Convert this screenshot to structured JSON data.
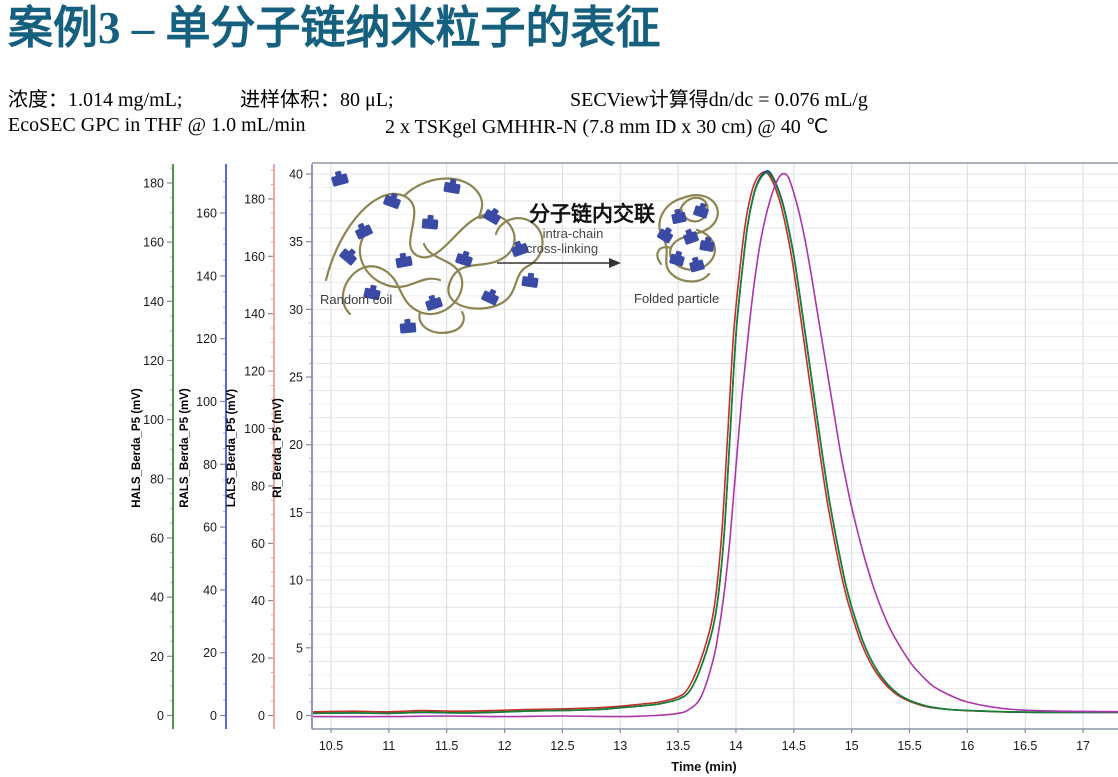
{
  "header": {
    "title": "案例3 – 单分子链纳米粒子的表征",
    "concentration": "浓度：1.014 mg/mL;",
    "injection_volume": "进样体积：80 μL;",
    "dndc": "SECView计算得dn/dc = 0.076 mL/g",
    "system": "EcoSEC GPC in THF @ 1.0 mL/min",
    "column": "2 x TSKgel GMHHR-N (7.8 mm ID x 30 cm) @ 40 ℃",
    "title_color": "#16607f"
  },
  "inset": {
    "random_coil_label": "Random coil",
    "folded_particle_label": "Folded particle",
    "arrow_title_cn": "分子链内交联",
    "arrow_sub1": "intra-chain",
    "arrow_sub2": "cross-linking",
    "chain_color": "#8d8551",
    "block_color": "#3b4aa5"
  },
  "chart_data": {
    "type": "line",
    "title": "",
    "xlabel": "Time (min)",
    "x_range": [
      10.35,
      17.3
    ],
    "x_ticks": [
      10.5,
      11,
      11.5,
      12,
      12.5,
      13,
      13.5,
      14,
      14.5,
      15,
      15.5,
      16,
      16.5,
      17
    ],
    "grid": "on",
    "legend": "none",
    "axes": [
      {
        "id": "hals",
        "label": "HALS_Berda_P5 (mV)",
        "color": "#2f8132",
        "max_label": 180,
        "step": 20,
        "minor_divisions": 4,
        "axis_max": 186
      },
      {
        "id": "rals",
        "label": "RALS_Berda_P5 (mV)",
        "color": "#3a4fd0",
        "max_label": 160,
        "step": 20,
        "minor_divisions": 4,
        "axis_max": 175
      },
      {
        "id": "lals",
        "label": "LALS_Berda_P5 (mV)",
        "color": "#f09696",
        "max_label": 180,
        "step": 20,
        "minor_divisions": 4,
        "axis_max": 191
      },
      {
        "id": "ri",
        "label": "RI_Berda_P5 (mV)",
        "color": "#8f7bb5",
        "max_label": 40,
        "step": 5,
        "minor_divisions": 5,
        "axis_max": 40.6
      }
    ],
    "series": [
      {
        "name": "LALS_Berda_P5",
        "axis": "lals",
        "color": "#c03028",
        "t": [
          10.35,
          10.69,
          10.99,
          11.29,
          11.59,
          11.89,
          12.19,
          12.49,
          12.79,
          12.99,
          13.19,
          13.34,
          13.49,
          13.58,
          13.68,
          13.78,
          13.83,
          13.88,
          13.93,
          13.98,
          14.03,
          14.08,
          14.13,
          14.18,
          14.25,
          14.31,
          14.38,
          14.43,
          14.48,
          14.53,
          14.58,
          14.63,
          14.68,
          14.73,
          14.78,
          14.83,
          14.88,
          14.93,
          14.98,
          15.08,
          15.18,
          15.28,
          15.38,
          15.48,
          15.58,
          15.68,
          15.83,
          15.98,
          16.28,
          16.58,
          16.88,
          17.3
        ],
        "v": [
          1.3,
          1.5,
          1.3,
          1.7,
          1.5,
          1.7,
          2.1,
          2.3,
          2.7,
          3.2,
          4.0,
          4.7,
          6.3,
          9.1,
          17.6,
          30.9,
          43.2,
          65.0,
          99.1,
          133.2,
          154.0,
          171.0,
          181.5,
          187.1,
          189.4,
          186.6,
          179.0,
          170.5,
          160.0,
          146.8,
          132.6,
          118.4,
          104.2,
          90.0,
          76.7,
          65.3,
          54.9,
          45.5,
          37.9,
          25.6,
          17.0,
          11.4,
          7.6,
          5.3,
          3.8,
          2.8,
          2.1,
          1.7,
          1.3,
          1.1,
          1.1,
          1.1
        ]
      },
      {
        "name": "RALS_Berda_P5",
        "axis": "rals",
        "color": "#26309a",
        "t": [
          10.35,
          10.7,
          11.0,
          11.3,
          11.6,
          11.9,
          12.2,
          12.5,
          12.8,
          13.0,
          13.2,
          13.35,
          13.5,
          13.6,
          13.7,
          13.8,
          13.85,
          13.9,
          13.95,
          14.0,
          14.05,
          14.1,
          14.15,
          14.2,
          14.27,
          14.33,
          14.4,
          14.45,
          14.5,
          14.55,
          14.6,
          14.65,
          14.7,
          14.75,
          14.8,
          14.85,
          14.9,
          14.95,
          15.0,
          15.1,
          15.2,
          15.3,
          15.4,
          15.5,
          15.6,
          15.7,
          15.85,
          16.0,
          16.3,
          16.6,
          16.9,
          17.3
        ],
        "v": [
          0.7,
          0.8,
          0.7,
          1.0,
          0.8,
          1.0,
          1.4,
          1.6,
          1.9,
          2.5,
          3.1,
          3.8,
          5.2,
          7.8,
          15.6,
          27.8,
          39.0,
          58.9,
          90.1,
          121.4,
          140.4,
          156.0,
          165.5,
          170.7,
          173.4,
          170.7,
          163.8,
          156.0,
          146.5,
          134.3,
          121.4,
          108.3,
          95.3,
          82.4,
          70.2,
          59.8,
          50.3,
          41.6,
          34.7,
          23.4,
          15.6,
          10.4,
          6.9,
          4.8,
          3.5,
          2.6,
          1.9,
          1.6,
          1.2,
          1.0,
          1.0,
          1.0
        ]
      },
      {
        "name": "HALS_Berda_P5",
        "axis": "hals",
        "color": "#17822e",
        "t": [
          10.35,
          10.7,
          11.0,
          11.3,
          11.6,
          11.9,
          12.2,
          12.5,
          12.8,
          13.0,
          13.2,
          13.35,
          13.5,
          13.6,
          13.7,
          13.8,
          13.85,
          13.9,
          13.95,
          14.0,
          14.05,
          14.1,
          14.15,
          14.2,
          14.27,
          14.33,
          14.4,
          14.45,
          14.5,
          14.55,
          14.6,
          14.65,
          14.7,
          14.75,
          14.8,
          14.85,
          14.9,
          14.95,
          15.0,
          15.1,
          15.2,
          15.3,
          15.4,
          15.5,
          15.6,
          15.7,
          15.85,
          16.0,
          16.3,
          16.6,
          16.9,
          17.3
        ],
        "v": [
          0.7,
          0.9,
          0.7,
          1.1,
          0.9,
          1.1,
          1.5,
          1.7,
          2.0,
          2.6,
          3.3,
          4.0,
          5.5,
          8.3,
          16.5,
          29.4,
          41.3,
          62.4,
          95.4,
          128.5,
          148.6,
          165.2,
          175.2,
          180.7,
          183.5,
          180.7,
          173.4,
          165.2,
          155.1,
          142.2,
          128.5,
          114.7,
          100.9,
          87.2,
          74.3,
          63.3,
          53.2,
          44.0,
          36.7,
          24.8,
          16.5,
          11.0,
          7.3,
          5.1,
          3.7,
          2.8,
          2.0,
          1.7,
          1.3,
          1.1,
          1.1,
          1.1
        ]
      },
      {
        "name": "RI_Berda_P5",
        "axis": "ri",
        "color": "#ab35ab",
        "t": [
          10.35,
          11.0,
          11.5,
          12.0,
          12.5,
          13.0,
          13.3,
          13.5,
          13.6,
          13.7,
          13.8,
          13.85,
          13.9,
          13.95,
          14.0,
          14.05,
          14.1,
          14.15,
          14.2,
          14.25,
          14.3,
          14.35,
          14.4,
          14.45,
          14.5,
          14.55,
          14.6,
          14.65,
          14.7,
          14.75,
          14.8,
          14.85,
          14.9,
          14.95,
          15.0,
          15.1,
          15.2,
          15.3,
          15.37,
          15.5,
          15.6,
          15.7,
          15.8,
          15.9,
          16.0,
          16.2,
          16.4,
          16.6,
          16.8,
          17.3
        ],
        "v": [
          -0.08,
          -0.08,
          -0.04,
          -0.08,
          -0.04,
          -0.08,
          0,
          0.16,
          0.48,
          1.4,
          4.0,
          6.2,
          9.2,
          13.2,
          18.4,
          23.4,
          27.6,
          31.4,
          34.4,
          36.6,
          38.2,
          39.4,
          40.0,
          39.8,
          38.6,
          37.0,
          35.0,
          32.6,
          30.0,
          27.4,
          24.8,
          22.2,
          19.6,
          17.4,
          15.4,
          12.0,
          9.2,
          7.0,
          5.8,
          4.0,
          3.0,
          2.2,
          1.7,
          1.3,
          1.0,
          0.64,
          0.44,
          0.36,
          0.32,
          0.28
        ]
      }
    ]
  }
}
